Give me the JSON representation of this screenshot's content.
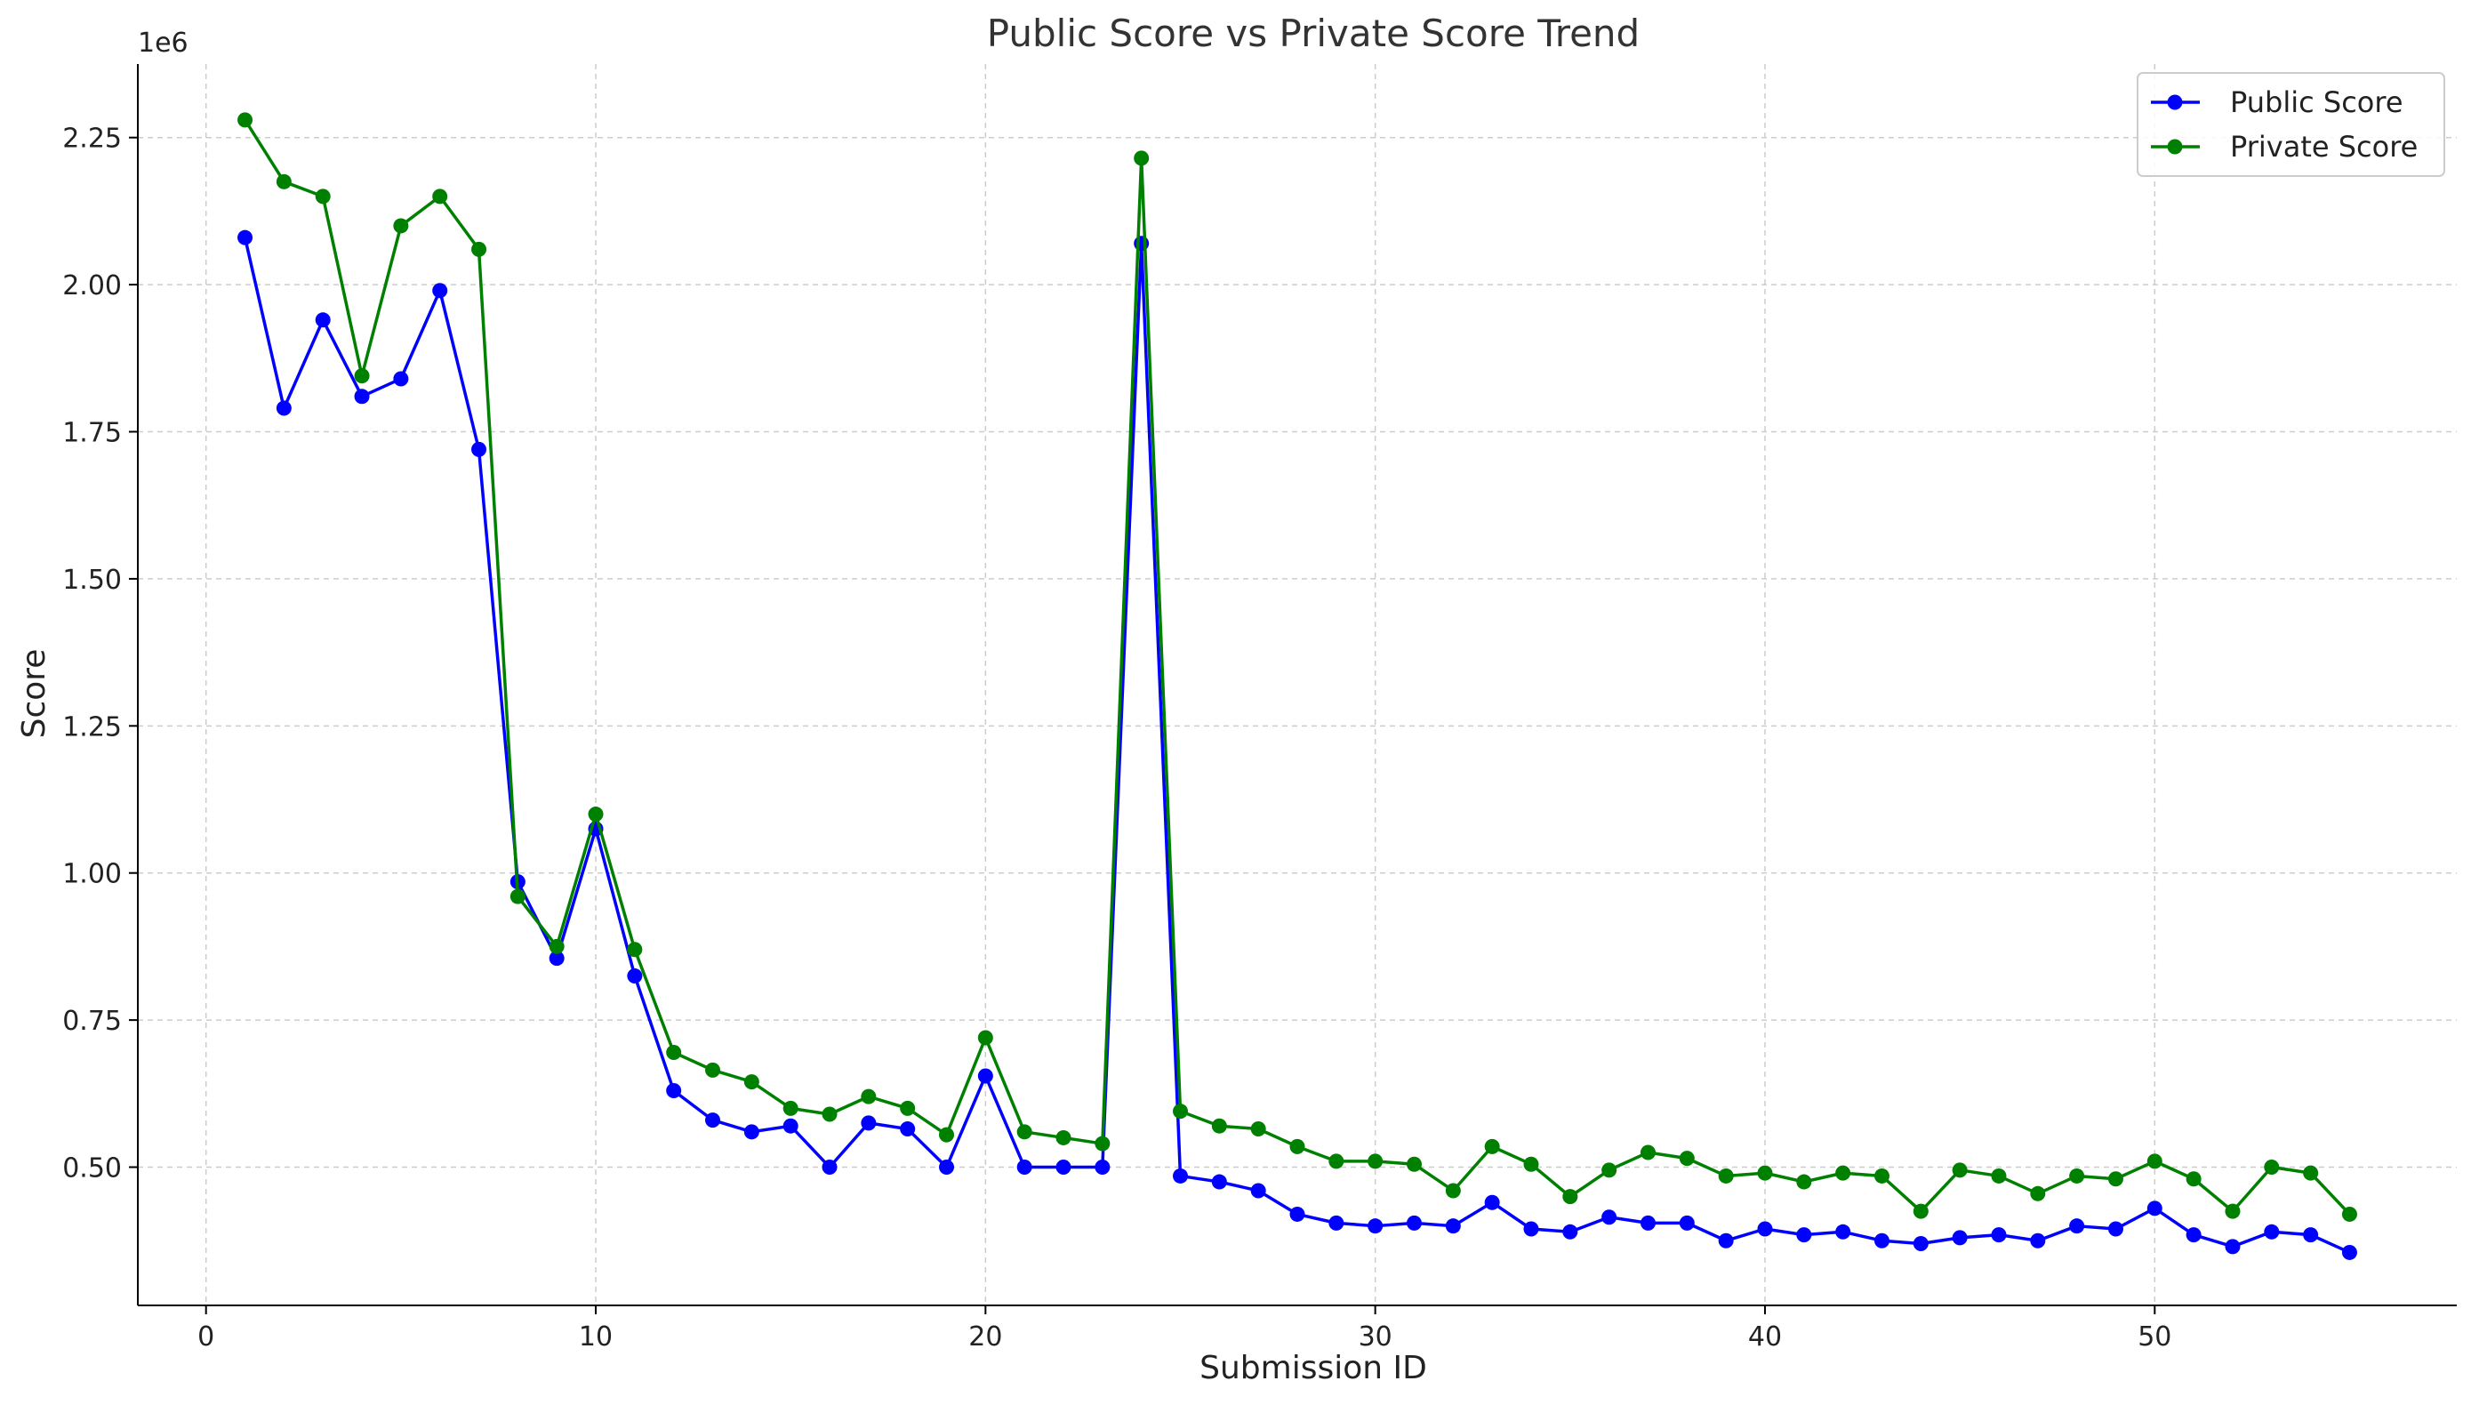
{
  "chart_data": {
    "type": "line",
    "title": "Public Score vs Private Score Trend",
    "xlabel": "Submission ID",
    "ylabel": "Score",
    "y_offset_label": "1e6",
    "xlim": [
      -1.75,
      57.75
    ],
    "ylim": [
      0.265,
      2.375
    ],
    "x_ticks": [
      0,
      10,
      20,
      30,
      40,
      50
    ],
    "x_tick_labels": [
      "0",
      "10",
      "20",
      "30",
      "40",
      "50"
    ],
    "y_ticks": [
      0.5,
      0.75,
      1.0,
      1.25,
      1.5,
      1.75,
      2.0,
      2.25
    ],
    "y_tick_labels": [
      "0.50",
      "0.75",
      "1.00",
      "1.25",
      "1.50",
      "1.75",
      "2.00",
      "2.25"
    ],
    "grid": true,
    "legend_position": "top-right",
    "x": [
      1,
      2,
      3,
      4,
      5,
      6,
      7,
      8,
      9,
      10,
      11,
      12,
      13,
      14,
      15,
      16,
      17,
      18,
      19,
      20,
      21,
      22,
      23,
      24,
      25,
      26,
      27,
      28,
      29,
      30,
      31,
      32,
      33,
      34,
      35,
      36,
      37,
      38,
      39,
      40,
      41,
      42,
      43,
      44,
      45,
      46,
      47,
      48,
      49,
      50,
      51,
      52,
      53,
      54,
      55
    ],
    "series": [
      {
        "name": "Public Score",
        "color": "#0000ff",
        "values": [
          2.08,
          1.79,
          1.94,
          1.81,
          1.84,
          1.99,
          1.72,
          0.985,
          0.855,
          1.075,
          0.825,
          0.63,
          0.58,
          0.56,
          0.57,
          0.5,
          0.575,
          0.565,
          0.5,
          0.655,
          0.5,
          0.5,
          0.5,
          2.07,
          0.485,
          0.475,
          0.46,
          0.42,
          0.405,
          0.4,
          0.405,
          0.4,
          0.44,
          0.395,
          0.39,
          0.415,
          0.405,
          0.405,
          0.375,
          0.395,
          0.385,
          0.39,
          0.375,
          0.37,
          0.38,
          0.385,
          0.375,
          0.4,
          0.395,
          0.43,
          0.385,
          0.365,
          0.39,
          0.385,
          0.355
        ]
      },
      {
        "name": "Private Score",
        "color": "#008000",
        "values": [
          2.28,
          2.175,
          2.15,
          1.845,
          2.1,
          2.15,
          2.06,
          0.96,
          0.875,
          1.1,
          0.87,
          0.695,
          0.665,
          0.645,
          0.6,
          0.59,
          0.62,
          0.6,
          0.555,
          0.72,
          0.56,
          0.55,
          0.54,
          2.215,
          0.595,
          0.57,
          0.565,
          0.535,
          0.51,
          0.51,
          0.505,
          0.46,
          0.535,
          0.505,
          0.45,
          0.495,
          0.525,
          0.515,
          0.485,
          0.49,
          0.475,
          0.49,
          0.485,
          0.425,
          0.495,
          0.485,
          0.455,
          0.485,
          0.48,
          0.51,
          0.48,
          0.425,
          0.5,
          0.49,
          0.42
        ]
      }
    ]
  }
}
